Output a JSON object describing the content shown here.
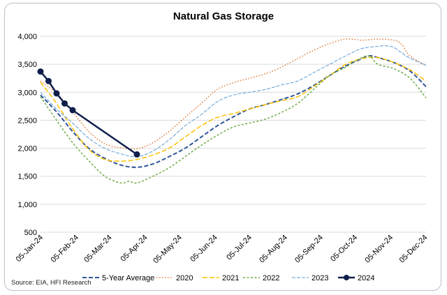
{
  "chart_data": {
    "type": "line",
    "title": "Natural Gas Storage",
    "source": "Source: EIA, HFI Research",
    "ylim": [
      500,
      4000
    ],
    "yticks": [
      500,
      1000,
      1500,
      2000,
      2500,
      3000,
      3500,
      4000
    ],
    "ytick_labels": [
      "500",
      "1,000",
      "1,500",
      "2,000",
      "2,500",
      "3,000",
      "3,500",
      "4,000"
    ],
    "xtick_labels": [
      "05-Jan-24",
      "05-Feb-24",
      "05-Mar-24",
      "05-Apr-24",
      "05-May-24",
      "05-Jun-24",
      "05-Jul-24",
      "05-Aug-24",
      "05-Sep-24",
      "05-Oct-24",
      "05-Nov-24",
      "05-Dec-24"
    ],
    "xlim_weeks": [
      0,
      48
    ],
    "series": [
      {
        "name": "5-Year Average",
        "color": "#2f5597",
        "dash": "6,3",
        "width": 2,
        "x": [
          0,
          2,
          4,
          6,
          8,
          10,
          12,
          14,
          16,
          18,
          20,
          22,
          24,
          26,
          28,
          30,
          32,
          34,
          36,
          38,
          40,
          41,
          42,
          44,
          46,
          48
        ],
        "values": [
          2950,
          2650,
          2300,
          2000,
          1820,
          1700,
          1660,
          1720,
          1850,
          2000,
          2200,
          2400,
          2560,
          2700,
          2780,
          2870,
          2970,
          3120,
          3300,
          3470,
          3600,
          3650,
          3620,
          3530,
          3380,
          3100
        ]
      },
      {
        "name": "2020",
        "color": "#e07b39",
        "dash": "1.5,2.5",
        "width": 1.5,
        "x": [
          0,
          2,
          4,
          6,
          8,
          10,
          12,
          14,
          16,
          18,
          20,
          22,
          24,
          26,
          28,
          30,
          32,
          34,
          36,
          38,
          40,
          41,
          42,
          44,
          45,
          46,
          48
        ],
        "values": [
          3200,
          2980,
          2650,
          2300,
          2080,
          2010,
          1990,
          2100,
          2300,
          2550,
          2800,
          3050,
          3170,
          3250,
          3330,
          3450,
          3600,
          3750,
          3870,
          3950,
          3930,
          3940,
          3950,
          3930,
          3850,
          3650,
          3480
        ]
      },
      {
        "name": "2021",
        "color": "#ffc000",
        "dash": "7,3",
        "width": 1.5,
        "x": [
          0,
          2,
          4,
          6,
          8,
          10,
          12,
          14,
          16,
          18,
          20,
          22,
          24,
          26,
          28,
          30,
          32,
          34,
          36,
          38,
          40,
          42,
          44,
          46,
          48
        ],
        "values": [
          3180,
          2800,
          2350,
          1980,
          1800,
          1770,
          1800,
          1880,
          2000,
          2200,
          2400,
          2550,
          2620,
          2700,
          2780,
          2850,
          2920,
          3100,
          3300,
          3500,
          3600,
          3620,
          3530,
          3400,
          3200
        ]
      },
      {
        "name": "2022",
        "color": "#70ad47",
        "dash": "3,2.5",
        "width": 1.5,
        "x": [
          0,
          2,
          4,
          6,
          8,
          10,
          11,
          12,
          14,
          16,
          18,
          20,
          22,
          24,
          26,
          28,
          30,
          32,
          34,
          36,
          38,
          40,
          41,
          42,
          44,
          46,
          48
        ],
        "values": [
          2920,
          2500,
          2100,
          1780,
          1500,
          1380,
          1410,
          1380,
          1500,
          1650,
          1850,
          2050,
          2230,
          2380,
          2450,
          2520,
          2640,
          2800,
          3050,
          3300,
          3450,
          3620,
          3640,
          3500,
          3420,
          3250,
          2900
        ]
      },
      {
        "name": "2023",
        "color": "#5b9bd5",
        "dash": "5,2",
        "width": 1,
        "x": [
          0,
          2,
          4,
          6,
          8,
          10,
          12,
          14,
          16,
          18,
          20,
          22,
          24,
          26,
          28,
          30,
          32,
          34,
          36,
          38,
          40,
          42,
          43,
          44,
          45,
          46,
          48
        ],
        "values": [
          3000,
          2700,
          2450,
          2180,
          2000,
          1900,
          1850,
          1950,
          2150,
          2400,
          2600,
          2830,
          2950,
          3000,
          3050,
          3130,
          3200,
          3350,
          3500,
          3650,
          3780,
          3820,
          3830,
          3800,
          3700,
          3610,
          3480
        ]
      },
      {
        "name": "2024",
        "color": "#0f1f4b",
        "dash": "",
        "width": 2.5,
        "markers": true,
        "x": [
          0,
          1,
          2,
          3,
          4,
          12
        ],
        "values": [
          3370,
          3200,
          2980,
          2800,
          2680,
          1890
        ]
      }
    ]
  }
}
